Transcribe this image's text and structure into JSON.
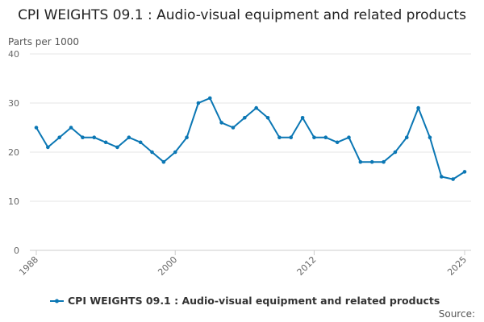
{
  "chart_data": {
    "type": "line",
    "title": "CPI WEIGHTS 09.1 : Audio-visual equipment and related products",
    "ylabel": "Parts per 1000",
    "xlabel": "",
    "ylim": [
      0,
      40
    ],
    "yticks": [
      "0",
      "10",
      "20",
      "30",
      "40"
    ],
    "xlim": [
      1988,
      2025
    ],
    "xticks": [
      "1988",
      "2000",
      "2012",
      "2025"
    ],
    "grid": "horizontal",
    "legend_position": "bottom",
    "colors": {
      "series": "#0b77b4",
      "grid": "#e6e6e6",
      "axis": "#cccccc"
    },
    "source_label": "Source:",
    "series": [
      {
        "name": "CPI WEIGHTS 09.1 : Audio-visual equipment and related products",
        "x": [
          1988,
          1989,
          1990,
          1991,
          1992,
          1993,
          1994,
          1995,
          1996,
          1997,
          1998,
          1999,
          2000,
          2001,
          2002,
          2003,
          2004,
          2005,
          2006,
          2007,
          2008,
          2009,
          2010,
          2011,
          2012,
          2013,
          2014,
          2015,
          2016,
          2017,
          2018,
          2019,
          2020,
          2021,
          2022,
          2023,
          2024,
          2025
        ],
        "values": [
          25,
          21,
          23,
          25,
          23,
          23,
          22,
          21,
          23,
          22,
          20,
          18,
          20,
          23,
          30,
          31,
          26,
          25,
          27,
          29,
          27,
          23,
          23,
          27,
          23,
          23,
          22,
          23,
          18,
          18,
          18,
          20,
          23,
          29,
          23,
          15,
          14.5,
          16
        ]
      }
    ]
  }
}
